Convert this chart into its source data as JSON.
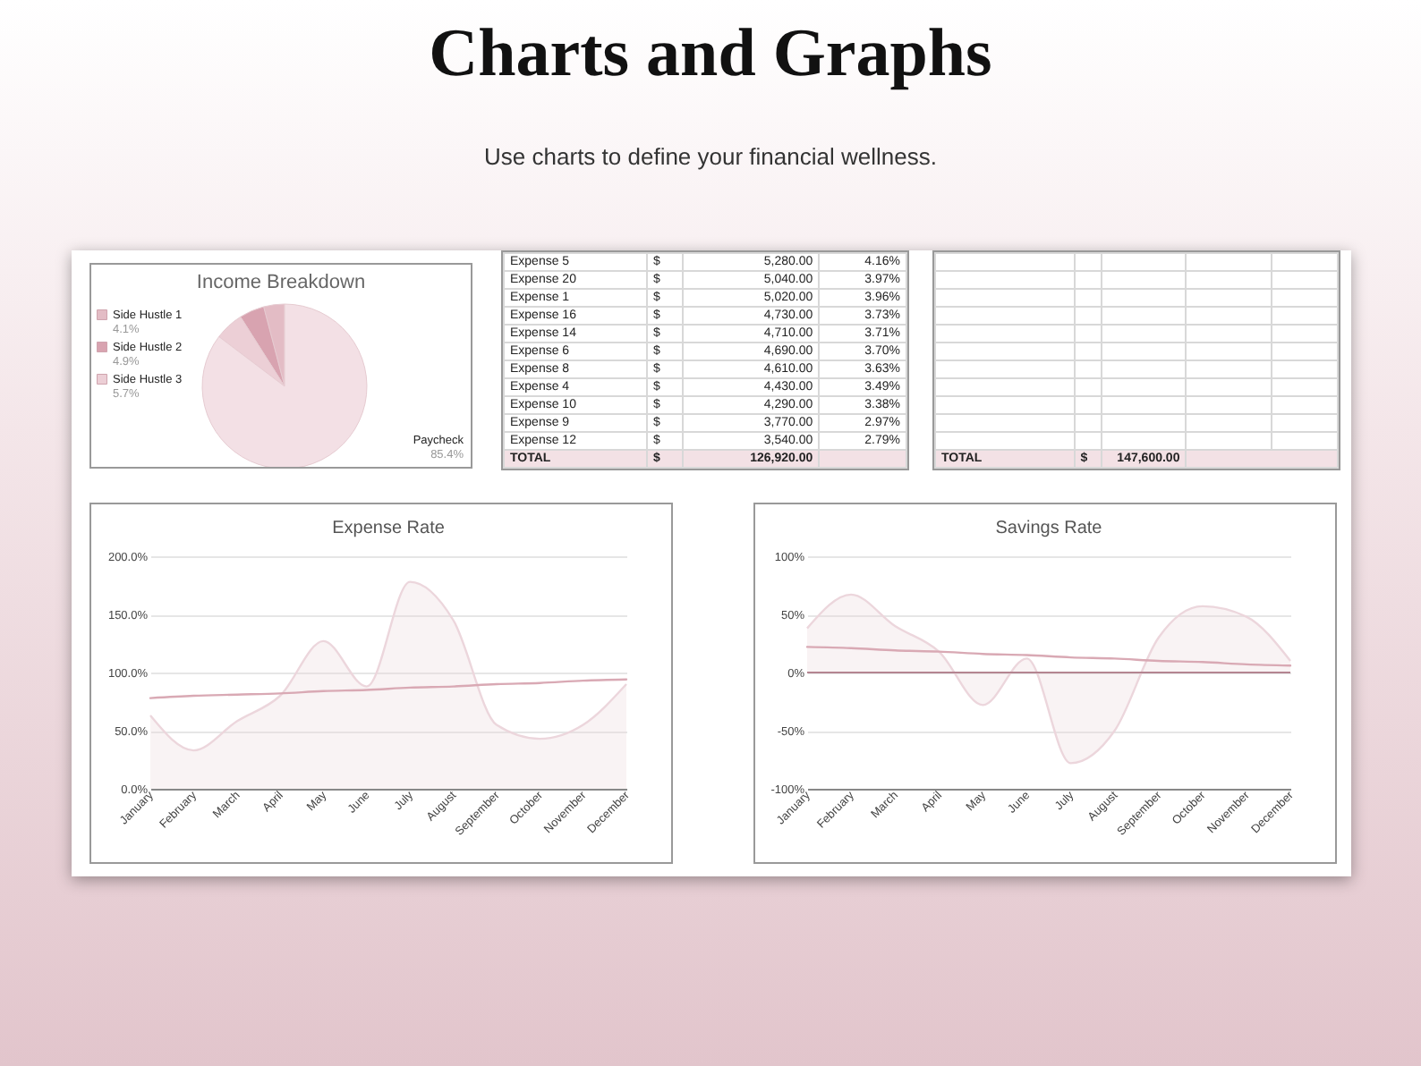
{
  "chart_data": [
    {
      "type": "other",
      "title": "Charts and Graphs",
      "subtitle": "Use charts to define your financial wellness."
    },
    {
      "type": "pie",
      "title": "Income Breakdown",
      "categories": [
        "Side Hustle 1",
        "Side Hustle 2",
        "Side Hustle 3",
        "Paycheck"
      ],
      "values": [
        4.1,
        4.9,
        5.7,
        85.4
      ],
      "colors": [
        "#e3bcc5",
        "#d8a3b0",
        "#eccfd6",
        "#f3e0e5"
      ],
      "value_labels": [
        "4.1%",
        "4.9%",
        "5.7%",
        "85.4%"
      ],
      "legend": "left"
    },
    {
      "type": "other",
      "annotations": [
        "Expense 5",
        "$",
        "5,280.00",
        "4.16%",
        "Expense 20",
        "$",
        "5,040.00",
        "3.97%",
        "Expense 1",
        "$",
        "5,020.00",
        "3.96%",
        "Expense 16",
        "$",
        "4,730.00",
        "3.73%",
        "Expense 14",
        "$",
        "4,710.00",
        "3.71%",
        "Expense 6",
        "$",
        "4,690.00",
        "3.70%",
        "Expense 8",
        "$",
        "4,610.00",
        "3.63%",
        "Expense 4",
        "$",
        "4,430.00",
        "3.49%",
        "Expense 10",
        "$",
        "4,290.00",
        "3.38%",
        "Expense 9",
        "$",
        "3,770.00",
        "2.97%",
        "Expense 12",
        "$",
        "3,540.00",
        "2.79%",
        "TOTAL",
        "$",
        "126,920.00"
      ]
    },
    {
      "type": "other",
      "annotations": [
        "TOTAL",
        "$",
        "147,600.00"
      ]
    },
    {
      "type": "area",
      "title": "Expense Rate",
      "categories": [
        "January",
        "February",
        "March",
        "April",
        "May",
        "June",
        "July",
        "August",
        "September",
        "October",
        "November",
        "December"
      ],
      "ylim": [
        0,
        200
      ],
      "yticks": [
        {
          "value": 0,
          "label": "0.0%"
        },
        {
          "value": 50,
          "label": "50.0%"
        },
        {
          "value": 100,
          "label": "100.0%"
        },
        {
          "value": 150,
          "label": "150.0%"
        },
        {
          "value": 200,
          "label": "200.0%"
        }
      ],
      "grid": "y",
      "series": [
        {
          "type": "area",
          "color": "#ecd6dc",
          "values": [
            63,
            33,
            58,
            80,
            127,
            88,
            178,
            145,
            55,
            43,
            55,
            90
          ]
        },
        {
          "type": "line",
          "color": "#d9a9b4",
          "values": [
            78,
            80,
            81,
            82,
            84,
            85,
            87,
            88,
            90,
            91,
            93,
            94
          ]
        }
      ]
    },
    {
      "type": "area",
      "title": "Savings Rate",
      "categories": [
        "January",
        "February",
        "March",
        "April",
        "May",
        "June",
        "July",
        "August",
        "September",
        "October",
        "November",
        "December"
      ],
      "ylim": [
        -100,
        100
      ],
      "yticks": [
        {
          "value": -100,
          "label": "-100%"
        },
        {
          "value": -50,
          "label": "-50%"
        },
        {
          "value": 0,
          "label": "0%"
        },
        {
          "value": 50,
          "label": "50%"
        },
        {
          "value": 100,
          "label": "100%"
        }
      ],
      "grid": "y",
      "ref_lines": [
        {
          "axis": "y",
          "value": 0,
          "color": "#b48591"
        }
      ],
      "series": [
        {
          "type": "area",
          "color": "#ecd6dc",
          "values": [
            38,
            67,
            40,
            18,
            -28,
            12,
            -78,
            -50,
            30,
            57,
            48,
            10
          ]
        },
        {
          "type": "line",
          "color": "#d9a9b4",
          "values": [
            22,
            21,
            19,
            18,
            16,
            15,
            13,
            12,
            10,
            9,
            7,
            6
          ]
        }
      ]
    }
  ]
}
